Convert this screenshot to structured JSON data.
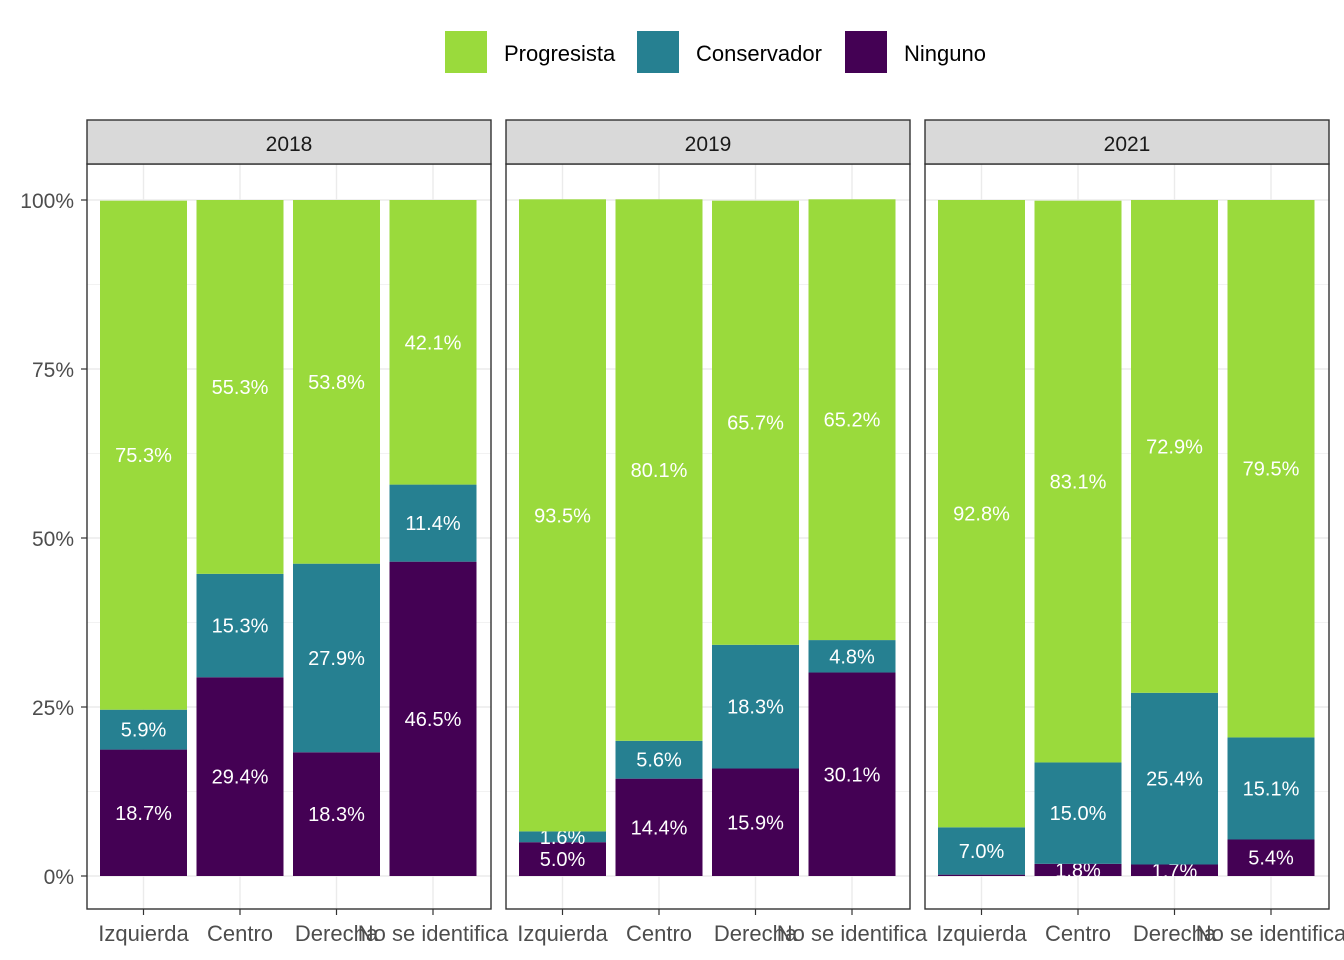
{
  "chart_data": {
    "type": "bar",
    "stacked": true,
    "facets": [
      "2018",
      "2019",
      "2021"
    ],
    "categories": [
      "Izquierda",
      "Centro",
      "Derecha",
      "No se identifica"
    ],
    "legend": {
      "position": "top",
      "entries": [
        "Progresista",
        "Conservador",
        "Ninguno"
      ]
    },
    "colors": {
      "Progresista": "#9ADA3C",
      "Conservador": "#268091",
      "Ninguno": "#440154"
    },
    "series": [
      {
        "name": "Ninguno",
        "values": {
          "2018": [
            18.7,
            29.4,
            18.3,
            46.5
          ],
          "2019": [
            5.0,
            14.4,
            15.9,
            30.1
          ],
          "2021": [
            0.2,
            1.8,
            1.7,
            5.4
          ]
        },
        "labels": {
          "2018": [
            "18.7%",
            "29.4%",
            "18.3%",
            "46.5%"
          ],
          "2019": [
            "5.0%",
            "14.4%",
            "15.9%",
            "30.1%"
          ],
          "2021": [
            "",
            "1.8%",
            "1.7%",
            "5.4%"
          ]
        }
      },
      {
        "name": "Conservador",
        "values": {
          "2018": [
            5.9,
            15.3,
            27.9,
            11.4
          ],
          "2019": [
            1.6,
            5.6,
            18.3,
            4.8
          ],
          "2021": [
            7.0,
            15.0,
            25.4,
            15.1
          ]
        },
        "labels": {
          "2018": [
            "5.9%",
            "15.3%",
            "27.9%",
            "11.4%"
          ],
          "2019": [
            "1.6%",
            "5.6%",
            "18.3%",
            "4.8%"
          ],
          "2021": [
            "7.0%",
            "15.0%",
            "25.4%",
            "15.1%"
          ]
        }
      },
      {
        "name": "Progresista",
        "values": {
          "2018": [
            75.3,
            55.3,
            53.8,
            42.1
          ],
          "2019": [
            93.5,
            80.1,
            65.7,
            65.2
          ],
          "2021": [
            92.8,
            83.1,
            72.9,
            79.5
          ]
        },
        "labels": {
          "2018": [
            "75.3%",
            "55.3%",
            "53.8%",
            "42.1%"
          ],
          "2019": [
            "93.5%",
            "80.1%",
            "65.7%",
            "65.2%"
          ],
          "2021": [
            "92.8%",
            "83.1%",
            "72.9%",
            "79.5%"
          ]
        }
      }
    ],
    "y_ticks": [
      "0%",
      "25%",
      "50%",
      "75%",
      "100%"
    ],
    "ylim": [
      0,
      100
    ],
    "xlabel": "",
    "ylabel": "",
    "title": "",
    "grid": true
  }
}
